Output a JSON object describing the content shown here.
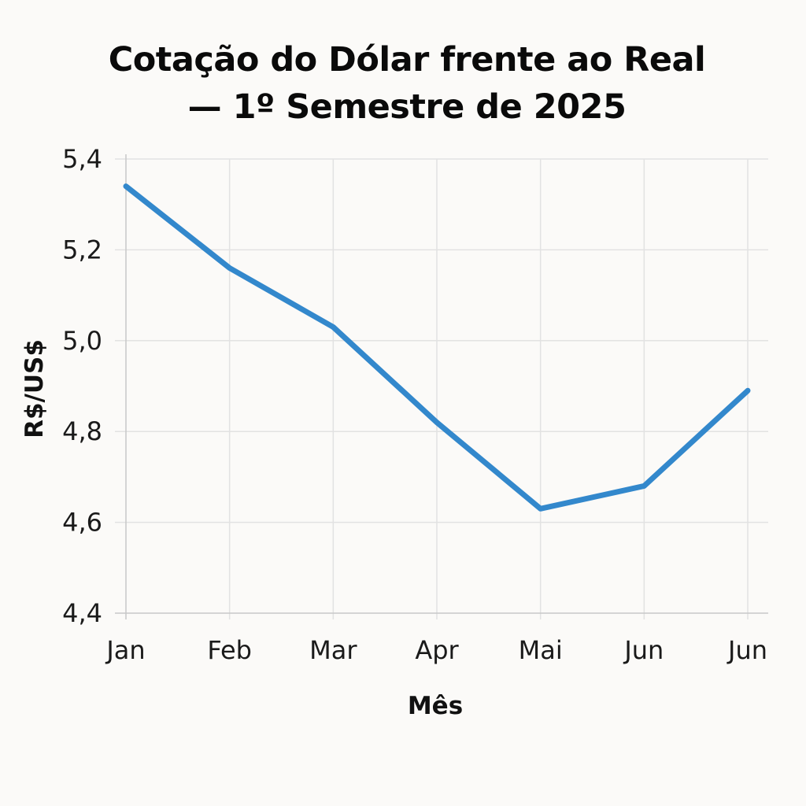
{
  "chart_data": {
    "type": "line",
    "title": "Cotação do Dólar frente ao Real — 1º Semestre de 2025",
    "title_lines": [
      "Cotação do Dólar frente ao Real",
      "— 1º Semestre de 2025"
    ],
    "xlabel": "Mês",
    "ylabel": "R$/US$",
    "categories": [
      "Jan",
      "Feb",
      "Mar",
      "Apr",
      "Mai",
      "Jun",
      "Jun"
    ],
    "series": [
      {
        "values": [
          5.34,
          5.16,
          5.03,
          4.82,
          4.63,
          4.68,
          4.89
        ],
        "color": "#3388cc"
      }
    ],
    "ylim": [
      4.4,
      5.4
    ],
    "y_ticks": [
      4.4,
      4.6,
      4.8,
      5.0,
      5.2,
      5.4
    ],
    "y_tick_labels": [
      "4,4",
      "4,6",
      "4,8",
      "5,0",
      "5,2",
      "5,4"
    ],
    "grid": true,
    "legend": "none"
  }
}
